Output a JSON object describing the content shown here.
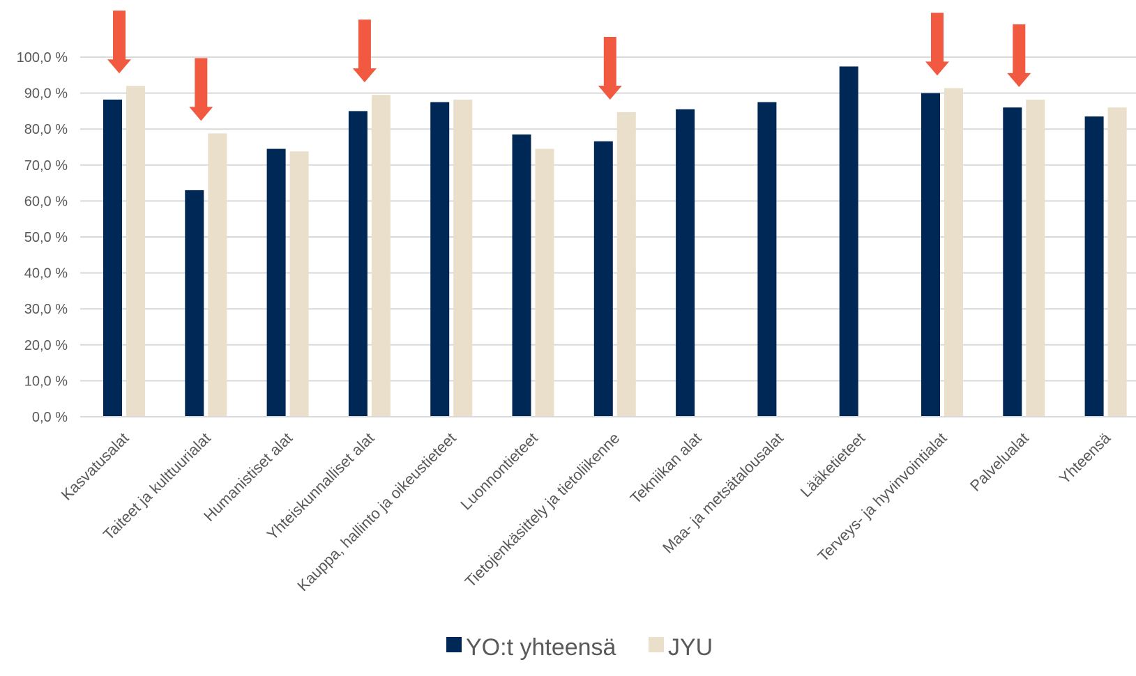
{
  "chart_data": {
    "type": "bar",
    "title": "",
    "xlabel": "",
    "ylabel": "",
    "ylim": [
      0,
      100
    ],
    "y_ticks": [
      "0,0 %",
      "10,0 %",
      "20,0 %",
      "30,0 %",
      "40,0 %",
      "50,0 %",
      "60,0 %",
      "70,0 %",
      "80,0 %",
      "90,0 %",
      "100,0 %"
    ],
    "grid": true,
    "legend_position": "bottom",
    "categories": [
      "Kasvatusalat",
      "Taiteet ja kulttuurialat",
      "Humanistiset alat",
      "Yhteiskunnalliset alat",
      "Kauppa, hallinto ja oikeustieteet",
      "Luonnontieteet",
      "Tietojenkäsittely ja tietoliikenne",
      "Tekniikan alat",
      "Maa- ja metsätalousalat",
      "Lääketieteet",
      "Terveys- ja hyvinvointialat",
      "Palvelualat",
      "Yhteensä"
    ],
    "series": [
      {
        "name": "YO:t yhteensä",
        "color": "#002856",
        "values": [
          88.2,
          63.0,
          74.5,
          85.0,
          87.5,
          78.5,
          76.6,
          85.5,
          87.5,
          97.4,
          90.0,
          86.0,
          83.5
        ]
      },
      {
        "name": "JYU",
        "color": "#eadfcb",
        "values": [
          92.0,
          78.8,
          73.8,
          89.5,
          88.2,
          74.5,
          84.7,
          null,
          null,
          null,
          91.4,
          88.2,
          86.0
        ]
      }
    ],
    "annotations": {
      "arrow_color": "#f15a40",
      "arrow_categories": [
        "Kasvatusalat",
        "Taiteet ja kulttuurialat",
        "Yhteiskunnalliset alat",
        "Tietojenkäsittely ja tietoliikenne",
        "Terveys- ja hyvinvointialat",
        "Palvelualat"
      ]
    }
  }
}
